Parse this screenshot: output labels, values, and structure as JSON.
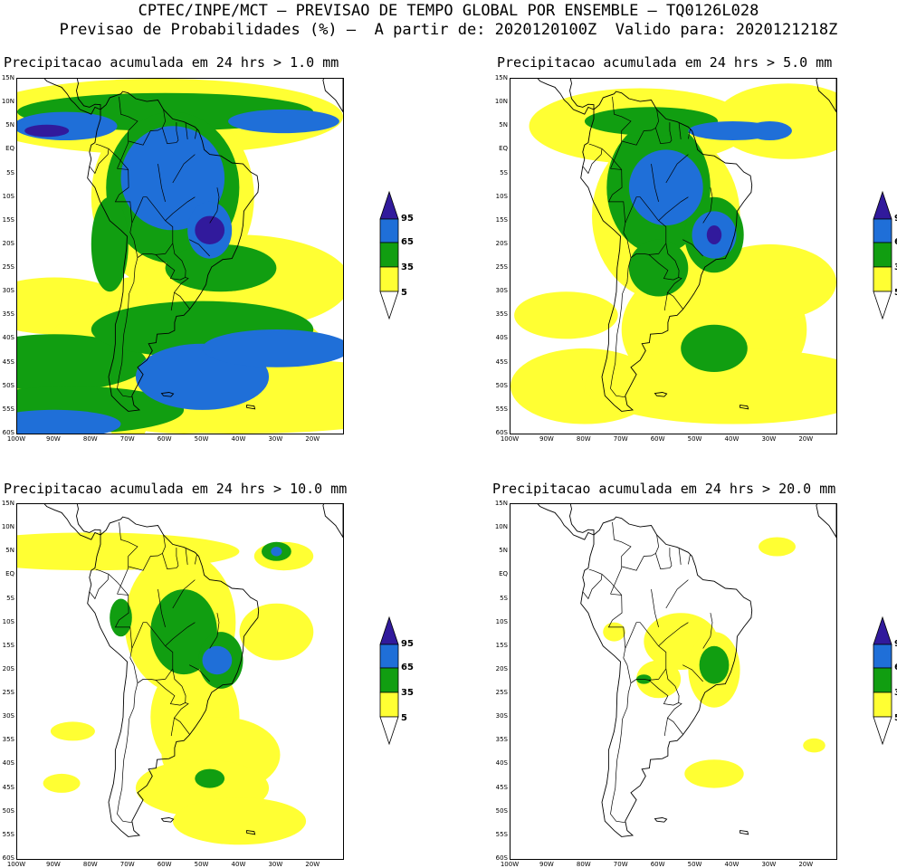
{
  "header": {
    "line1": "CPTEC/INPE/MCT — PREVISAO DE TEMPO GLOBAL POR ENSEMBLE — TQ0126L028",
    "line2": "Previsao de Probabilidades (%) —  A partir de: 2020120100Z  Valido para: 2020121218Z"
  },
  "colors": {
    "c5": "#ffff33",
    "c35": "#119e11",
    "c65": "#1f6fd8",
    "c95": "#311a9c",
    "land_outline": "#000000",
    "background": "#ffffff"
  },
  "axes": {
    "lat_labels": [
      "15N",
      "10N",
      "5N",
      "EQ",
      "5S",
      "10S",
      "15S",
      "20S",
      "25S",
      "30S",
      "35S",
      "40S",
      "45S",
      "50S",
      "55S",
      "60S"
    ],
    "lon_labels": [
      "100W",
      "90W",
      "80W",
      "70W",
      "60W",
      "50W",
      "40W",
      "30W",
      "20W"
    ],
    "lon_range": [
      -100,
      -12
    ],
    "lat_range": [
      -60,
      15
    ]
  },
  "colorbar": {
    "labels": [
      "95",
      "65",
      "35",
      "5"
    ],
    "thresholds": [
      5,
      35,
      65,
      95
    ]
  },
  "panels": [
    {
      "title": "Precipitacao acumulada em 24 hrs > 1.0 mm",
      "threshold_mm": 1.0
    },
    {
      "title": "Precipitacao acumulada em 24 hrs > 5.0 mm",
      "threshold_mm": 5.0
    },
    {
      "title": "Precipitacao acumulada em 24 hrs > 10.0 mm",
      "threshold_mm": 10.0
    },
    {
      "title": "Precipitacao acumulada em 24 hrs > 20.0 mm",
      "threshold_mm": 20.0
    }
  ]
}
